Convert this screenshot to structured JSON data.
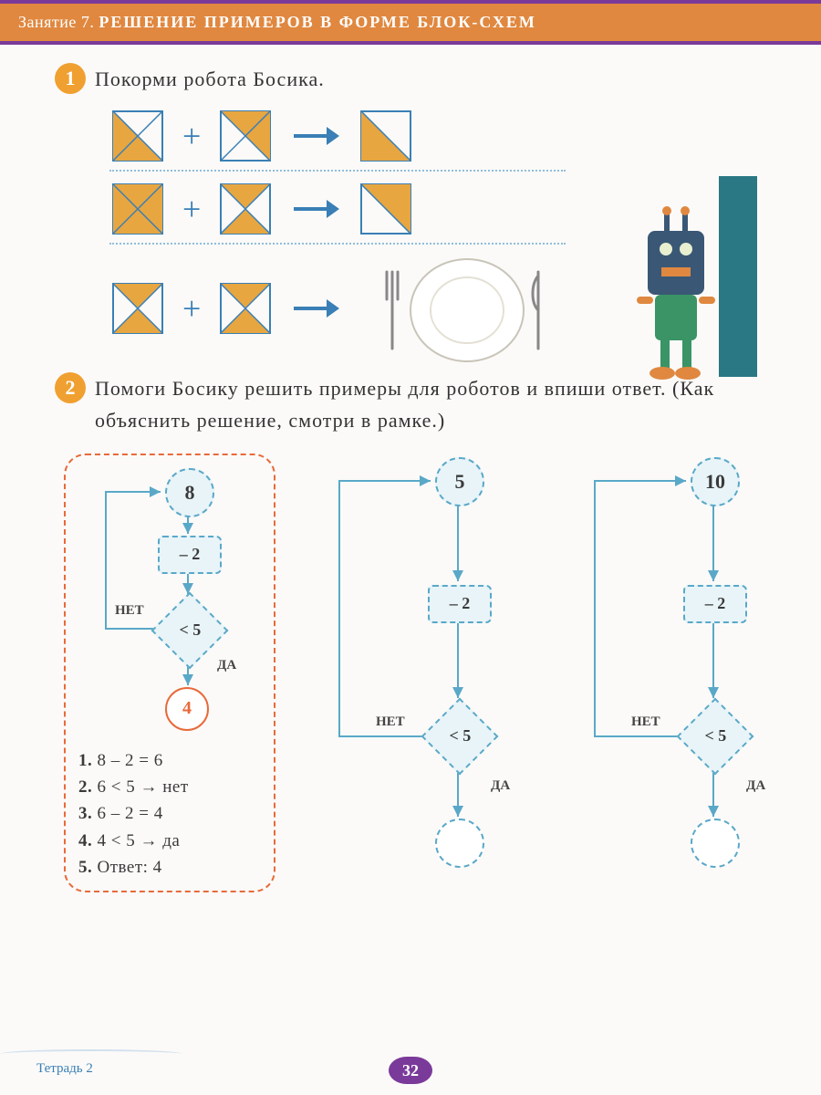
{
  "header": {
    "prefix": "Занятие 7.",
    "title": "РЕШЕНИЕ ПРИМЕРОВ В ФОРМЕ БЛОК-СХЕМ"
  },
  "colors": {
    "accent_orange": "#f0a030",
    "header_orange": "#e08840",
    "purple": "#7a3a9a",
    "blue": "#3a7fb5",
    "node_border": "#5aa8c8",
    "node_fill": "#e8f4f8",
    "result_red": "#e86a3a",
    "tri_fill": "#e8a640",
    "tri_outline": "#3a7fb5"
  },
  "task1": {
    "number": "1",
    "text": "Покорми робота Босика.",
    "rows": [
      {
        "a": [
          "left",
          "bottom"
        ],
        "b": [
          "top",
          "right"
        ],
        "r": [
          "bottom"
        ]
      },
      {
        "a": [
          "top-left",
          "bottom-right"
        ],
        "b": [
          "top",
          "bottom"
        ],
        "r": [
          "top"
        ]
      },
      {
        "a": [
          "top",
          "bottom"
        ],
        "b": [
          "top",
          "bottom"
        ],
        "r": "plate"
      }
    ],
    "operator": "+"
  },
  "task2": {
    "number": "2",
    "text": "Помоги Босику решить примеры для роботов и впиши ответ. (Как объяснить решение, смотри в рамке.)",
    "labels": {
      "no": "НЕТ",
      "yes": "ДА"
    },
    "example": {
      "start": "8",
      "op": "– 2",
      "cond": "< 5",
      "result": "4",
      "steps": [
        "8 – 2 = 6",
        "6 < 5 → нет",
        "6 – 2 = 4",
        "4 < 5 → да",
        "Ответ: 4"
      ]
    },
    "problems": [
      {
        "start": "5",
        "op": "– 2",
        "cond": "< 5"
      },
      {
        "start": "10",
        "op": "– 2",
        "cond": "< 5"
      }
    ]
  },
  "footer": {
    "workbook": "Тетрадь 2",
    "page": "32"
  }
}
